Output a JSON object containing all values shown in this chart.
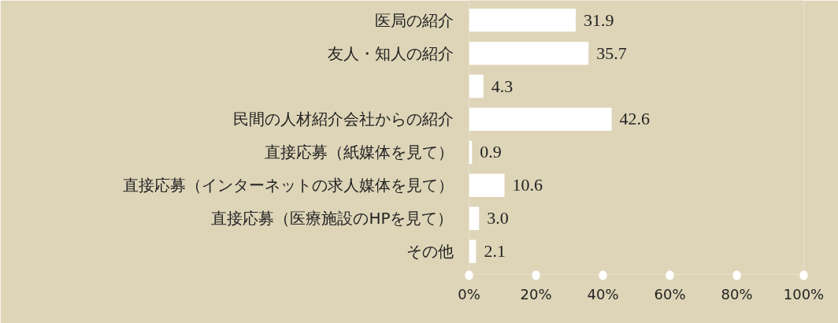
{
  "chart_data": {
    "type": "bar",
    "orientation": "horizontal",
    "categories": [
      "医局の紹介",
      "友人・知人の紹介",
      null,
      "民間の人材紹介会社からの紹介",
      "直接応募（紙媒体を見て）",
      "直接応募（インターネットの求人媒体を見て）",
      "直接応募（医療施設のHPを見て）",
      "その他"
    ],
    "values": [
      31.9,
      35.7,
      4.3,
      42.6,
      0.9,
      10.6,
      3.0,
      2.1
    ],
    "value_labels": [
      "31.9",
      "35.7",
      "4.3",
      "42.6",
      "0.9",
      "10.6",
      "3.0",
      "2.1"
    ],
    "color": "#ffffff",
    "xlim": [
      0,
      100
    ],
    "xticks": [
      {
        "value": 0,
        "label": "0%"
      },
      {
        "value": 20,
        "label": "20%"
      },
      {
        "value": 40,
        "label": "40%"
      },
      {
        "value": 60,
        "label": "60%"
      },
      {
        "value": 80,
        "label": "80%"
      },
      {
        "value": 100,
        "label": "100%"
      }
    ],
    "grid": false
  }
}
